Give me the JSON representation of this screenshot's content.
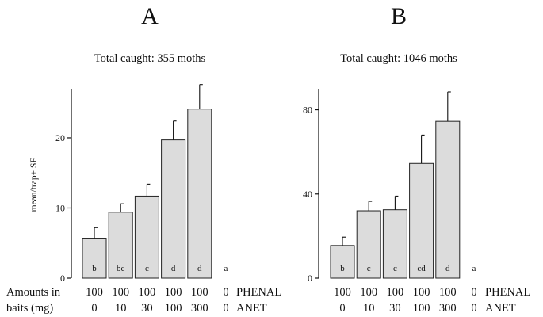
{
  "chart_data": [
    {
      "type": "bar",
      "panel_label": "A",
      "subtitle": "Total caught: 355 moths",
      "ylabel": "mean/trap+ SE",
      "ylim": [
        0,
        27
      ],
      "yticks": [
        0,
        10,
        20
      ],
      "values": [
        5.7,
        9.4,
        11.7,
        19.7,
        24.1,
        0
      ],
      "errors": [
        1.5,
        1.2,
        1.7,
        2.7,
        3.5,
        0
      ],
      "significance": [
        "b",
        "bc",
        "c",
        "d",
        "d",
        "a"
      ],
      "phenal": [
        "100",
        "100",
        "100",
        "100",
        "100",
        "0"
      ],
      "anet": [
        "0",
        "10",
        "30",
        "100",
        "300",
        "0"
      ]
    },
    {
      "type": "bar",
      "panel_label": "B",
      "subtitle": "Total caught: 1046 moths",
      "ylabel": "",
      "ylim": [
        0,
        90
      ],
      "yticks": [
        0,
        40,
        80
      ],
      "values": [
        15.5,
        32,
        32.5,
        54.5,
        74.5,
        0
      ],
      "errors": [
        4,
        4.5,
        6.5,
        13.5,
        14,
        0
      ],
      "significance": [
        "b",
        "c",
        "c",
        "cd",
        "d",
        "a"
      ],
      "phenal": [
        "100",
        "100",
        "100",
        "100",
        "100",
        "0"
      ],
      "anet": [
        "0",
        "10",
        "30",
        "100",
        "300",
        "0"
      ]
    }
  ],
  "row_labels": {
    "amounts_line1": "Amounts in",
    "amounts_line2": "baits (mg)",
    "phenal": "PHENAL",
    "anet": "ANET"
  }
}
